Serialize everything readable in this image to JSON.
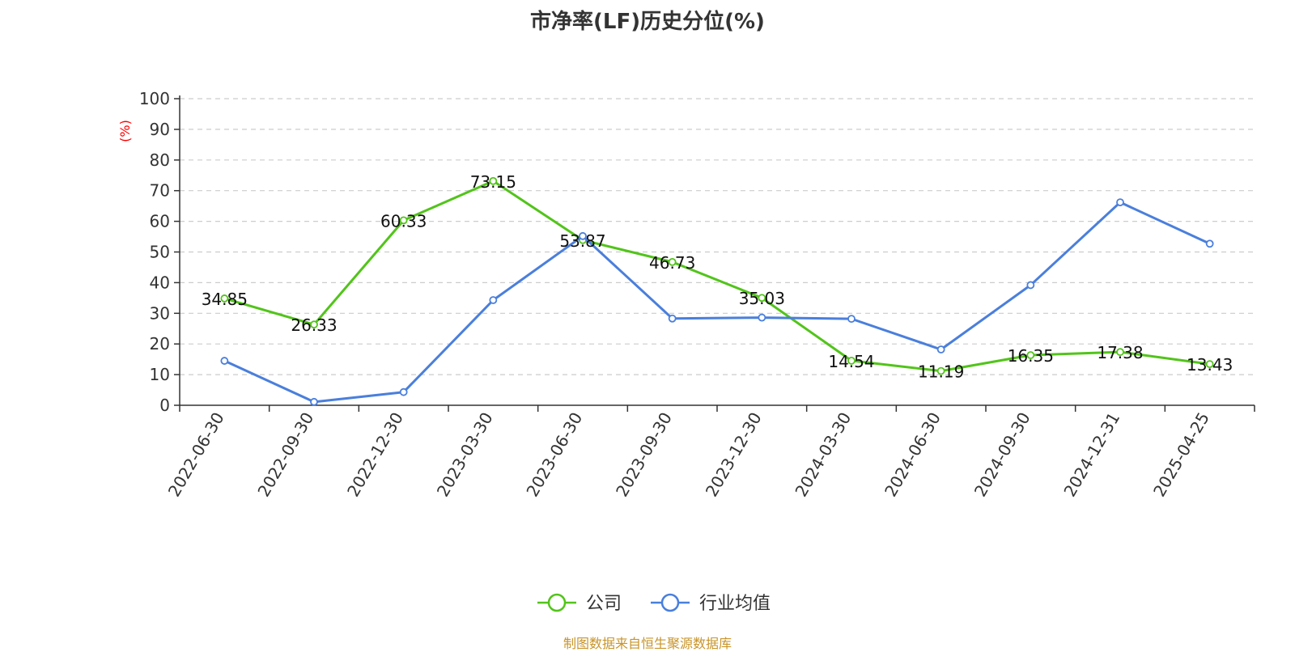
{
  "title": "市净率(LF)历史分位(%)",
  "source": "制图数据来自恒生聚源数据库",
  "chart_data": {
    "type": "line",
    "title": "市净率(LF)历史分位(%)",
    "ylabel": "(%)",
    "ylim": [
      0,
      100
    ],
    "yticks": [
      0,
      10,
      20,
      30,
      40,
      50,
      60,
      70,
      80,
      90,
      100
    ],
    "grid": true,
    "legend_position": "bottom-center",
    "categories": [
      "2022-06-30",
      "2022-09-30",
      "2022-12-30",
      "2023-03-30",
      "2023-06-30",
      "2023-09-30",
      "2023-12-30",
      "2024-03-30",
      "2024-06-30",
      "2024-09-30",
      "2024-12-31",
      "2025-04-25"
    ],
    "series": [
      {
        "name": "公司",
        "color": "#52c41a",
        "values": [
          34.85,
          26.33,
          60.33,
          73.15,
          53.87,
          46.73,
          35.03,
          14.54,
          11.19,
          16.35,
          17.38,
          13.43
        ],
        "labels": [
          "34.85",
          "26.33",
          "60.33",
          "73.15",
          "53.87",
          "46.73",
          "35.03",
          "14.54",
          "11.19",
          "16.35",
          "17.38",
          "13.43"
        ]
      },
      {
        "name": "行业均值",
        "color": "#4a7fdc",
        "values": [
          14.5,
          1.1,
          4.3,
          34.3,
          55.2,
          28.3,
          28.6,
          28.2,
          18.2,
          39.2,
          66.2,
          52.7
        ]
      }
    ]
  },
  "colors": {
    "axis": "#333333",
    "grid": "#cccccc",
    "ylabel": "#ff0000"
  }
}
